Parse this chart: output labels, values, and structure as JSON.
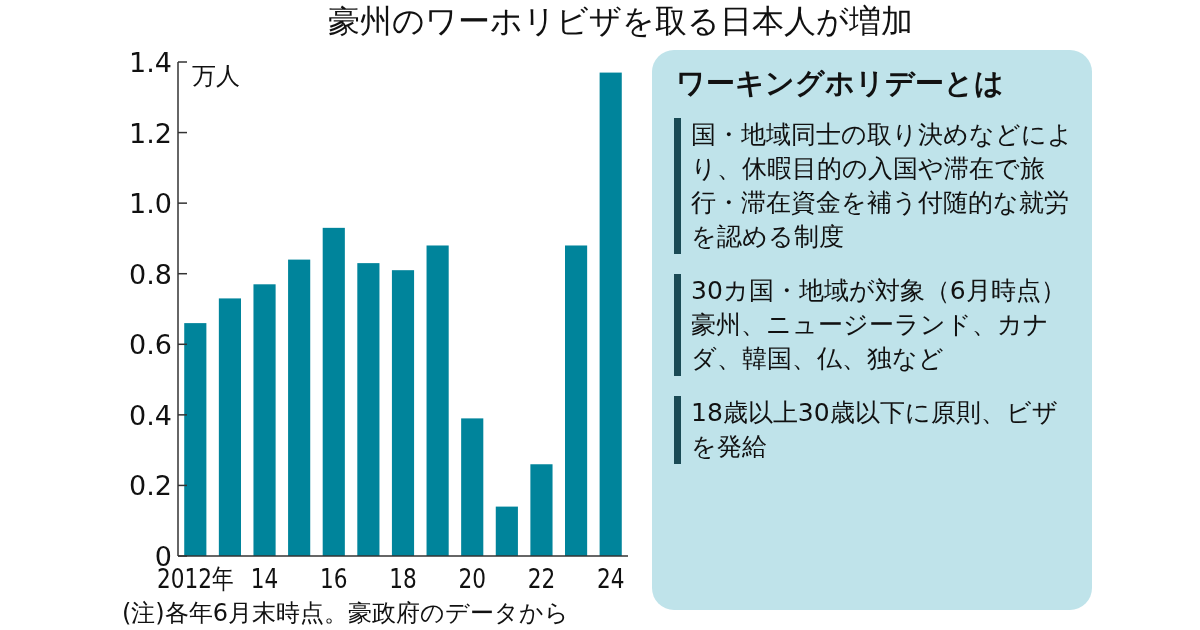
{
  "chart_data": {
    "type": "bar",
    "title": "豪州のワーホリビザを取る日本人が増加",
    "ylabel": "万人",
    "categories": [
      "2012年",
      null,
      "14",
      null,
      "16",
      null,
      "18",
      null,
      "20",
      null,
      "22",
      null,
      "24"
    ],
    "values": [
      0.66,
      0.73,
      0.77,
      0.84,
      0.93,
      0.83,
      0.81,
      0.88,
      0.39,
      0.14,
      0.26,
      0.88,
      1.37
    ],
    "color": "#00849b",
    "ylim": [
      0,
      1.4
    ],
    "yticks": [
      0,
      0.2,
      0.4,
      0.6,
      0.8,
      {
        "value": 1,
        "label": "1.0"
      },
      1.2,
      1.4
    ],
    "grid": false,
    "annotations": [
      "(注)各年6月末時点。豪政府のデータから",
      "ワーキングホリデーとは",
      "国・地域同士の取り決めなどにより、休暇目的の入国や滞在で旅行・滞在資金を補う付随的な就労を認める制度",
      "30カ国・地域が対象（6月時点）豪州、ニュージーランド、カナダ、韓国、仏、独など",
      "18歳以上30歳以下に原則、ビザを発給"
    ]
  }
}
